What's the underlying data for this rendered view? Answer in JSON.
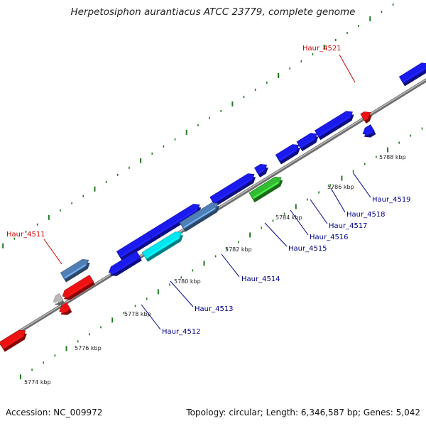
{
  "title": "Herpetosiphon aurantiacus ATCC 23779, complete genome",
  "footer": {
    "accession": "Accession: NC_009972",
    "stats": "Topology: circular; Length: 6,346,587 bp; Genes: 5,042"
  },
  "colors": {
    "backbone": "#8a8a8a",
    "tick": "#1f7a1f",
    "gene_label_blue": "#00008b",
    "gene_label_red": "#cc0000",
    "blue": "#1a1aee",
    "steel": "#4f7fb5",
    "cyan": "#00e5ee",
    "green": "#33bb33",
    "red": "#ee1111",
    "gray": "#b8b8b8"
  },
  "scale_labels": [
    "5774 kbp",
    "5776 kbp",
    "5778 kbp",
    "5780 kbp",
    "5782 kbp",
    "5784 kbp",
    "5786 kbp",
    "5788 kbp"
  ],
  "gene_labels": [
    {
      "text": "Haur_4511",
      "color": "red"
    },
    {
      "text": "Haur_4512",
      "color": "blue"
    },
    {
      "text": "Haur_4513",
      "color": "blue"
    },
    {
      "text": "Haur_4514",
      "color": "blue"
    },
    {
      "text": "Haur_4515",
      "color": "blue"
    },
    {
      "text": "Haur_4516",
      "color": "blue"
    },
    {
      "text": "Haur_4517",
      "color": "blue"
    },
    {
      "text": "Haur_4518",
      "color": "blue"
    },
    {
      "text": "Haur_4519",
      "color": "blue"
    },
    {
      "text": "Haur_4521",
      "color": "red"
    }
  ]
}
